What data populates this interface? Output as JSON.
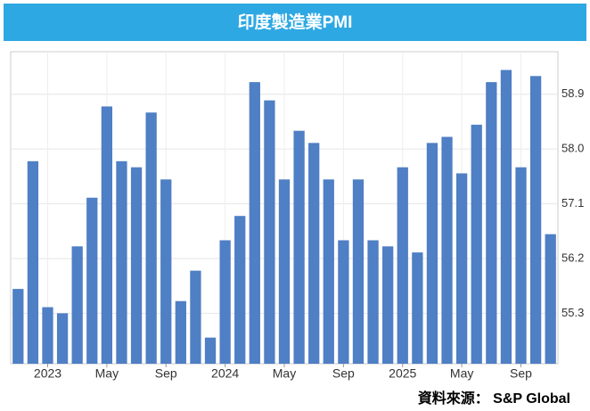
{
  "chart_data": {
    "type": "bar",
    "title": "印度製造業PMI",
    "source": "資料來源： S&P Global",
    "categories": [
      null,
      null,
      "2023",
      null,
      null,
      null,
      "May",
      null,
      null,
      null,
      "Sep",
      null,
      null,
      null,
      "2024",
      null,
      null,
      null,
      "May",
      null,
      null,
      null,
      "Sep",
      null,
      null,
      null,
      "2025",
      null,
      null,
      null,
      "May",
      null,
      null,
      null,
      "Sep",
      null,
      null
    ],
    "values": [
      55.7,
      57.8,
      55.4,
      55.3,
      56.4,
      57.2,
      58.7,
      57.8,
      57.7,
      58.6,
      57.5,
      55.5,
      56.0,
      54.9,
      56.5,
      56.9,
      59.1,
      58.8,
      57.5,
      58.3,
      58.1,
      57.5,
      56.5,
      57.5,
      56.5,
      56.4,
      57.7,
      56.3,
      58.1,
      58.2,
      57.6,
      58.4,
      59.1,
      59.3,
      57.7,
      59.2,
      56.6
    ],
    "color": "#4f7fc4",
    "ylim": [
      54.47,
      59.6
    ],
    "yticks": [
      55.3,
      56.2,
      57.1,
      {
        "value": 58,
        "label": "58.0"
      },
      58.9
    ],
    "grid": true,
    "y_axis_side": "right"
  }
}
